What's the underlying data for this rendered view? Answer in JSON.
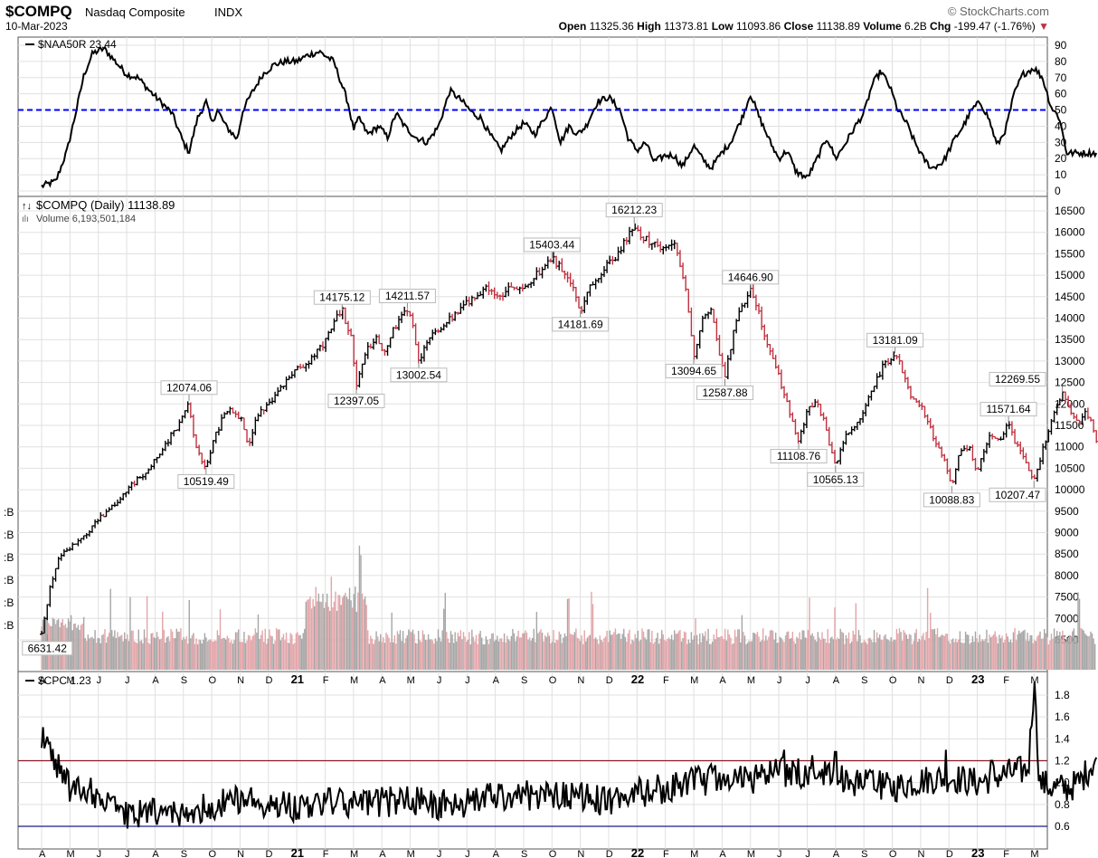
{
  "header": {
    "symbol": "$COMPQ",
    "name": "Nasdaq Composite",
    "exchange": "INDX",
    "date": "10-Mar-2023",
    "brand": "© StockCharts.com",
    "quote": {
      "open_label": "Open",
      "open": "11325.36",
      "high_label": "High",
      "high": "11373.81",
      "low_label": "Low",
      "low": "11093.86",
      "close_label": "Close",
      "close": "11138.89",
      "volume_label": "Volume",
      "volume": "6.2B",
      "chg_label": "Chg",
      "chg": "-199.47 (-1.76%)",
      "chg_arrow": "▼"
    }
  },
  "colors": {
    "up": "#000000",
    "down": "#c0313f",
    "vol_up": "#a6a6a6",
    "vol_down": "#e3a5a9",
    "naa_ref": "#0000ff",
    "cpc_high": "#8b1a2a",
    "cpc_low": "#1a1a8b",
    "grid": "#e0e0e0"
  },
  "chart_data": [
    {
      "panel": "top",
      "type": "line",
      "legend": "$NAA50R 23.44",
      "ylim": [
        0,
        90
      ],
      "yticks": [
        0,
        10,
        20,
        30,
        40,
        50,
        60,
        70,
        80,
        90
      ],
      "reference_line": 50,
      "x_months": [
        "A",
        "M",
        "J",
        "J",
        "A",
        "S",
        "O",
        "N",
        "D",
        "21",
        "F",
        "M",
        "A",
        "M",
        "J",
        "J",
        "A",
        "S",
        "O",
        "N",
        "D",
        "22",
        "F",
        "M",
        "A",
        "M",
        "J",
        "J",
        "A",
        "S",
        "O",
        "N",
        "D",
        "23",
        "F",
        "M"
      ],
      "anchors": [
        [
          0,
          3
        ],
        [
          0.5,
          6
        ],
        [
          0.9,
          25
        ],
        [
          1.2,
          48
        ],
        [
          1.5,
          72
        ],
        [
          1.8,
          85
        ],
        [
          2.2,
          88
        ],
        [
          2.6,
          80
        ],
        [
          3.0,
          72
        ],
        [
          3.4,
          70
        ],
        [
          3.8,
          62
        ],
        [
          4.2,
          55
        ],
        [
          4.6,
          48
        ],
        [
          5.0,
          30
        ],
        [
          5.2,
          24
        ],
        [
          5.5,
          45
        ],
        [
          5.8,
          55
        ],
        [
          6.0,
          42
        ],
        [
          6.2,
          50
        ],
        [
          6.5,
          40
        ],
        [
          6.9,
          32
        ],
        [
          7.1,
          50
        ],
        [
          7.4,
          60
        ],
        [
          7.8,
          72
        ],
        [
          8.2,
          78
        ],
        [
          8.6,
          80
        ],
        [
          9.0,
          80
        ],
        [
          9.4,
          84
        ],
        [
          9.8,
          86
        ],
        [
          10.3,
          80
        ],
        [
          10.8,
          55
        ],
        [
          11.0,
          38
        ],
        [
          11.2,
          45
        ],
        [
          11.5,
          35
        ],
        [
          11.9,
          40
        ],
        [
          12.2,
          33
        ],
        [
          12.5,
          48
        ],
        [
          12.8,
          40
        ],
        [
          13.2,
          33
        ],
        [
          13.6,
          30
        ],
        [
          14.0,
          40
        ],
        [
          14.4,
          62
        ],
        [
          14.8,
          56
        ],
        [
          15.2,
          48
        ],
        [
          15.5,
          45
        ],
        [
          15.8,
          35
        ],
        [
          16.2,
          25
        ],
        [
          16.6,
          35
        ],
        [
          17.0,
          42
        ],
        [
          17.4,
          35
        ],
        [
          17.7,
          44
        ],
        [
          18.0,
          52
        ],
        [
          18.3,
          30
        ],
        [
          18.6,
          40
        ],
        [
          18.9,
          35
        ],
        [
          19.2,
          40
        ],
        [
          19.6,
          55
        ],
        [
          20.0,
          58
        ],
        [
          20.4,
          50
        ],
        [
          20.7,
          32
        ],
        [
          21.0,
          25
        ],
        [
          21.3,
          30
        ],
        [
          21.6,
          18
        ],
        [
          22.0,
          22
        ],
        [
          22.3,
          22
        ],
        [
          22.6,
          15
        ],
        [
          23.0,
          28
        ],
        [
          23.3,
          20
        ],
        [
          23.6,
          14
        ],
        [
          24.0,
          24
        ],
        [
          24.3,
          30
        ],
        [
          24.7,
          45
        ],
        [
          25.0,
          60
        ],
        [
          25.3,
          46
        ],
        [
          25.7,
          30
        ],
        [
          26.0,
          20
        ],
        [
          26.3,
          25
        ],
        [
          26.6,
          12
        ],
        [
          27.0,
          8
        ],
        [
          27.3,
          18
        ],
        [
          27.7,
          33
        ],
        [
          28.0,
          20
        ],
        [
          28.3,
          28
        ],
        [
          28.7,
          40
        ],
        [
          29.0,
          48
        ],
        [
          29.3,
          66
        ],
        [
          29.6,
          74
        ],
        [
          29.9,
          65
        ],
        [
          30.2,
          50
        ],
        [
          30.5,
          42
        ],
        [
          30.8,
          30
        ],
        [
          31.1,
          20
        ],
        [
          31.4,
          14
        ],
        [
          31.8,
          18
        ],
        [
          32.2,
          32
        ],
        [
          32.5,
          40
        ],
        [
          32.8,
          50
        ],
        [
          33.1,
          55
        ],
        [
          33.4,
          45
        ],
        [
          33.7,
          28
        ],
        [
          34.0,
          38
        ],
        [
          34.3,
          60
        ],
        [
          34.6,
          72
        ],
        [
          35.0,
          76
        ],
        [
          35.3,
          70
        ],
        [
          35.6,
          52
        ],
        [
          35.9,
          45
        ],
        [
          36.15,
          23.44
        ]
      ]
    },
    {
      "panel": "main",
      "type": "ohlc",
      "legend": "$COMPQ (Daily) 11138.89",
      "legend2": "Volume 6,193,501,184",
      "ylim": [
        6300,
        16700
      ],
      "yticks": [
        6500,
        7000,
        7500,
        8000,
        8500,
        9000,
        9500,
        10000,
        10500,
        11000,
        11500,
        12000,
        12500,
        13000,
        13500,
        14000,
        14500,
        15000,
        15500,
        16000,
        16500
      ],
      "volume_axis_labels": [
        "B",
        "B",
        "B",
        "B",
        "B",
        "B"
      ],
      "anchors": [
        [
          0,
          6631.42
        ],
        [
          0.3,
          7700
        ],
        [
          0.6,
          8400
        ],
        [
          1.0,
          8650
        ],
        [
          1.5,
          8900
        ],
        [
          2.0,
          9300
        ],
        [
          2.5,
          9600
        ],
        [
          3.0,
          10000
        ],
        [
          3.5,
          10300
        ],
        [
          4.0,
          10700
        ],
        [
          4.5,
          11200
        ],
        [
          5.0,
          11700
        ],
        [
          5.2,
          12074.06
        ],
        [
          5.35,
          11300
        ],
        [
          5.6,
          10700
        ],
        [
          5.8,
          10519.49
        ],
        [
          6.1,
          11200
        ],
        [
          6.5,
          11900
        ],
        [
          7.0,
          11700
        ],
        [
          7.3,
          11050
        ],
        [
          7.6,
          11700
        ],
        [
          8.0,
          12000
        ],
        [
          8.5,
          12450
        ],
        [
          9.0,
          12800
        ],
        [
          9.5,
          13050
        ],
        [
          10.0,
          13450
        ],
        [
          10.3,
          13900
        ],
        [
          10.6,
          14175.12
        ],
        [
          10.9,
          13600
        ],
        [
          11.1,
          12397.05
        ],
        [
          11.4,
          13200
        ],
        [
          11.8,
          13500
        ],
        [
          12.1,
          13250
        ],
        [
          12.4,
          13750
        ],
        [
          12.9,
          14211.57
        ],
        [
          13.1,
          13800
        ],
        [
          13.3,
          13002.54
        ],
        [
          13.6,
          13500
        ],
        [
          14.1,
          13800
        ],
        [
          14.6,
          14100
        ],
        [
          15.1,
          14400
        ],
        [
          15.6,
          14700
        ],
        [
          16.1,
          14500
        ],
        [
          16.6,
          14700
        ],
        [
          17.1,
          14800
        ],
        [
          17.6,
          15100
        ],
        [
          18.0,
          15403.44
        ],
        [
          18.3,
          15200
        ],
        [
          18.7,
          14800
        ],
        [
          19.0,
          14181.69
        ],
        [
          19.4,
          14800
        ],
        [
          19.8,
          15100
        ],
        [
          20.3,
          15500
        ],
        [
          20.6,
          15800
        ],
        [
          20.9,
          16212.23
        ],
        [
          21.2,
          15900
        ],
        [
          21.6,
          15700
        ],
        [
          22.0,
          15600
        ],
        [
          22.3,
          15800
        ],
        [
          22.5,
          15200
        ],
        [
          22.7,
          14800
        ],
        [
          22.9,
          13700
        ],
        [
          23.0,
          13094.65
        ],
        [
          23.3,
          14000
        ],
        [
          23.6,
          14200
        ],
        [
          23.9,
          13200
        ],
        [
          24.1,
          12587.88
        ],
        [
          24.4,
          13700
        ],
        [
          24.7,
          14300
        ],
        [
          25.0,
          14646.9
        ],
        [
          25.3,
          14100
        ],
        [
          25.6,
          13400
        ],
        [
          25.9,
          12900
        ],
        [
          26.2,
          12200
        ],
        [
          26.5,
          11500
        ],
        [
          26.7,
          11108.76
        ],
        [
          27.0,
          11800
        ],
        [
          27.3,
          12100
        ],
        [
          27.6,
          11600
        ],
        [
          27.8,
          11000
        ],
        [
          28.0,
          10565.13
        ],
        [
          28.3,
          11200
        ],
        [
          28.6,
          11500
        ],
        [
          28.9,
          11600
        ],
        [
          29.1,
          12000
        ],
        [
          29.4,
          12500
        ],
        [
          29.7,
          12900
        ],
        [
          30.1,
          13181.09
        ],
        [
          30.4,
          12700
        ],
        [
          30.7,
          12100
        ],
        [
          31.0,
          12000
        ],
        [
          31.3,
          11500
        ],
        [
          31.6,
          11000
        ],
        [
          31.9,
          10600
        ],
        [
          32.1,
          10088.83
        ],
        [
          32.4,
          10900
        ],
        [
          32.7,
          11000
        ],
        [
          33.0,
          10400
        ],
        [
          33.3,
          11000
        ],
        [
          33.5,
          11300
        ],
        [
          33.8,
          11200
        ],
        [
          34.1,
          11571.64
        ],
        [
          34.4,
          11000
        ],
        [
          34.7,
          10700
        ],
        [
          35.0,
          10207.47
        ],
        [
          35.3,
          10900
        ],
        [
          35.6,
          11600
        ],
        [
          35.8,
          12000
        ],
        [
          36.0,
          12269.55
        ],
        [
          36.2,
          11900
        ],
        [
          36.4,
          11700
        ],
        [
          36.6,
          11500
        ],
        [
          36.8,
          11800
        ],
        [
          37.0,
          11600
        ],
        [
          37.2,
          11138.89
        ]
      ],
      "annotations": [
        {
          "text": "6631.42",
          "x": 0.2,
          "y": 6631.42,
          "pos": "below"
        },
        {
          "text": "12074.06",
          "x": 5.2,
          "y": 12074.06,
          "pos": "above"
        },
        {
          "text": "10519.49",
          "x": 5.8,
          "y": 10519.49,
          "pos": "below"
        },
        {
          "text": "14175.12",
          "x": 10.6,
          "y": 14175.12,
          "pos": "above"
        },
        {
          "text": "12397.05",
          "x": 11.1,
          "y": 12397.05,
          "pos": "below"
        },
        {
          "text": "14211.57",
          "x": 12.9,
          "y": 14211.57,
          "pos": "above"
        },
        {
          "text": "13002.54",
          "x": 13.3,
          "y": 13002.54,
          "pos": "below"
        },
        {
          "text": "15403.44",
          "x": 18.0,
          "y": 15403.44,
          "pos": "above"
        },
        {
          "text": "14181.69",
          "x": 19.0,
          "y": 14181.69,
          "pos": "below"
        },
        {
          "text": "16212.23",
          "x": 20.9,
          "y": 16212.23,
          "pos": "above"
        },
        {
          "text": "13094.65",
          "x": 23.0,
          "y": 13094.65,
          "pos": "below"
        },
        {
          "text": "12587.88",
          "x": 24.1,
          "y": 12587.88,
          "pos": "below"
        },
        {
          "text": "14646.90",
          "x": 25.0,
          "y": 14646.9,
          "pos": "above"
        },
        {
          "text": "11108.76",
          "x": 26.7,
          "y": 11108.76,
          "pos": "below"
        },
        {
          "text": "10565.13",
          "x": 28.0,
          "y": 10565.13,
          "pos": "below"
        },
        {
          "text": "13181.09",
          "x": 30.1,
          "y": 13181.09,
          "pos": "above"
        },
        {
          "text": "10088.83",
          "x": 32.1,
          "y": 10088.83,
          "pos": "below"
        },
        {
          "text": "11571.64",
          "x": 34.1,
          "y": 11571.64,
          "pos": "above"
        },
        {
          "text": "10207.47",
          "x": 35.0,
          "y": 10207.47,
          "pos": "below"
        },
        {
          "text": "12269.55",
          "x": 36.0,
          "y": 12269.55,
          "pos": "above"
        }
      ]
    },
    {
      "panel": "bottom",
      "type": "line",
      "legend": "$CPC 1.23",
      "ylim": [
        0.55,
        1.95
      ],
      "yticks": [
        0.6,
        0.8,
        1.0,
        1.2,
        1.4,
        1.6,
        1.8
      ],
      "reference_lines": [
        1.2,
        0.6
      ],
      "anchors": [
        [
          0,
          1.45
        ],
        [
          1.0,
          0.95
        ],
        [
          2.0,
          0.9
        ],
        [
          3.0,
          0.7
        ],
        [
          4.0,
          0.72
        ],
        [
          5.0,
          0.7
        ],
        [
          6.0,
          0.8
        ],
        [
          7.0,
          0.85
        ],
        [
          8.0,
          0.82
        ],
        [
          9.0,
          0.78
        ],
        [
          10.0,
          0.82
        ],
        [
          11.0,
          0.8
        ],
        [
          12.0,
          0.82
        ],
        [
          13.0,
          0.84
        ],
        [
          14.0,
          0.8
        ],
        [
          15.0,
          0.82
        ],
        [
          16.0,
          0.88
        ],
        [
          17.0,
          0.88
        ],
        [
          18.0,
          0.9
        ],
        [
          19.0,
          0.88
        ],
        [
          20.0,
          0.82
        ],
        [
          21.0,
          0.9
        ],
        [
          22.0,
          0.95
        ],
        [
          23.0,
          1.0
        ],
        [
          24.0,
          1.05
        ],
        [
          25.0,
          1.02
        ],
        [
          26.0,
          1.1
        ],
        [
          27.0,
          1.08
        ],
        [
          28.0,
          1.05
        ],
        [
          29.0,
          1.0
        ],
        [
          30.0,
          0.95
        ],
        [
          31.0,
          1.02
        ],
        [
          32.0,
          1.05
        ],
        [
          33.0,
          1.0
        ],
        [
          34.0,
          1.08
        ],
        [
          34.8,
          1.12
        ],
        [
          35.0,
          1.9
        ],
        [
          35.2,
          1.0
        ],
        [
          35.7,
          0.95
        ],
        [
          36.2,
          0.95
        ],
        [
          36.6,
          1.0
        ],
        [
          37.2,
          1.23
        ]
      ],
      "spikes": [
        [
          35.0,
          1.92
        ],
        [
          31.9,
          1.3
        ],
        [
          33.5,
          1.2
        ],
        [
          26.2,
          1.3
        ],
        [
          28.0,
          1.28
        ],
        [
          27.2,
          1.25
        ]
      ]
    }
  ]
}
